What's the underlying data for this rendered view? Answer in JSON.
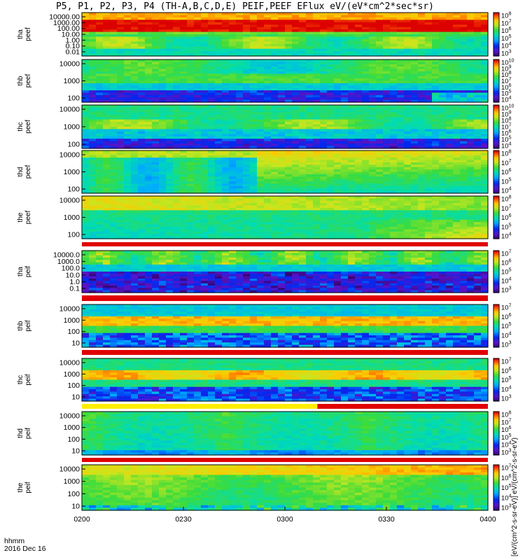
{
  "title": "P5, P1, P2, P3, P4 (TH-A,B,C,D,E) PEIF,PEEF EFlux eV/(eV*cm^2*sec*sr)",
  "units_label": "[eV/(cm^2-s-sr-eV)] eV/(cm^2-s-sr-eV)",
  "footer": {
    "hhmm": "hhmm",
    "date": "2016 Dec 16"
  },
  "chart_data": {
    "type": "heatmap",
    "x_tick_labels": [
      "0200",
      "0230",
      "0300",
      "0330",
      "0400"
    ],
    "x_range": [
      "02:00",
      "04:00"
    ],
    "colormap": "rainbow (purple-blue-cyan-green-yellow-red)",
    "panels": [
      {
        "id": "tha_peef",
        "label": "tha\npeef",
        "yticks": [
          "10000.00",
          "1000.00",
          "100.00",
          "10.00",
          "1.00",
          "0.10",
          "0.01"
        ],
        "cbar_ticks": [
          "10^8",
          "10^7",
          "10^6",
          "10^5",
          "10^4",
          "10^3"
        ],
        "flag_bar": "none"
      },
      {
        "id": "thb_peef",
        "label": "thb\npeef",
        "yticks": [
          "10000",
          "1000",
          "100"
        ],
        "cbar_ticks": [
          "10^10",
          "10^9",
          "10^8",
          "10^7",
          "10^6",
          "10^5",
          "10^4"
        ],
        "flag_bar": "none"
      },
      {
        "id": "thc_peef",
        "label": "thc\npeef",
        "yticks": [
          "10000",
          "1000",
          "100"
        ],
        "cbar_ticks": [
          "10^10",
          "10^9",
          "10^8",
          "10^7",
          "10^6",
          "10^5",
          "10^4"
        ],
        "flag_bar": "none"
      },
      {
        "id": "thd_peef",
        "label": "thd\npeef",
        "yticks": [
          "10000",
          "1000",
          "100"
        ],
        "cbar_ticks": [
          "10^8",
          "10^7",
          "10^6",
          "10^5",
          "10^4"
        ],
        "flag_bar": "none"
      },
      {
        "id": "the_peef",
        "label": "the\npeef",
        "yticks": [
          "10000",
          "1000",
          "100"
        ],
        "cbar_ticks": [
          "10^8",
          "10^7",
          "10^6",
          "10^5",
          "10^4"
        ],
        "flag_bar": "red"
      },
      {
        "id": "tha_peif",
        "label": "tha\npeif",
        "yticks": [
          "10000.0",
          "1000.0",
          "100.0",
          "10.0",
          "1.0",
          "0.1"
        ],
        "cbar_ticks": [
          "10^7",
          "10^6",
          "10^5",
          "10^4",
          "10^3"
        ],
        "flag_bar": "red"
      },
      {
        "id": "thb_peif",
        "label": "thb\npeif",
        "yticks": [
          "10000",
          "1000",
          "100",
          "10"
        ],
        "cbar_ticks": [
          "10^7",
          "10^6",
          "10^5",
          "10^4",
          "10^3"
        ],
        "flag_bar": "red"
      },
      {
        "id": "thc_peif",
        "label": "thc\npeif",
        "yticks": [
          "10000",
          "1000",
          "100",
          "10"
        ],
        "cbar_ticks": [
          "10^7",
          "10^6",
          "10^5",
          "10^4",
          "10^3"
        ],
        "flag_bar": "yellow-red"
      },
      {
        "id": "thd_peif",
        "label": "thd\npeif",
        "yticks": [
          "10000",
          "1000",
          "100",
          "10"
        ],
        "cbar_ticks": [
          "10^8",
          "10^7",
          "10^6",
          "10^5",
          "10^4",
          "10^3"
        ],
        "flag_bar": "red"
      },
      {
        "id": "the_peif",
        "label": "the\npeif",
        "yticks": [
          "10000",
          "1000",
          "100",
          "10"
        ],
        "cbar_ticks": [
          "10^7",
          "10^6",
          "10^5",
          "10^4",
          "10^3"
        ],
        "flag_bar": "none"
      }
    ]
  }
}
